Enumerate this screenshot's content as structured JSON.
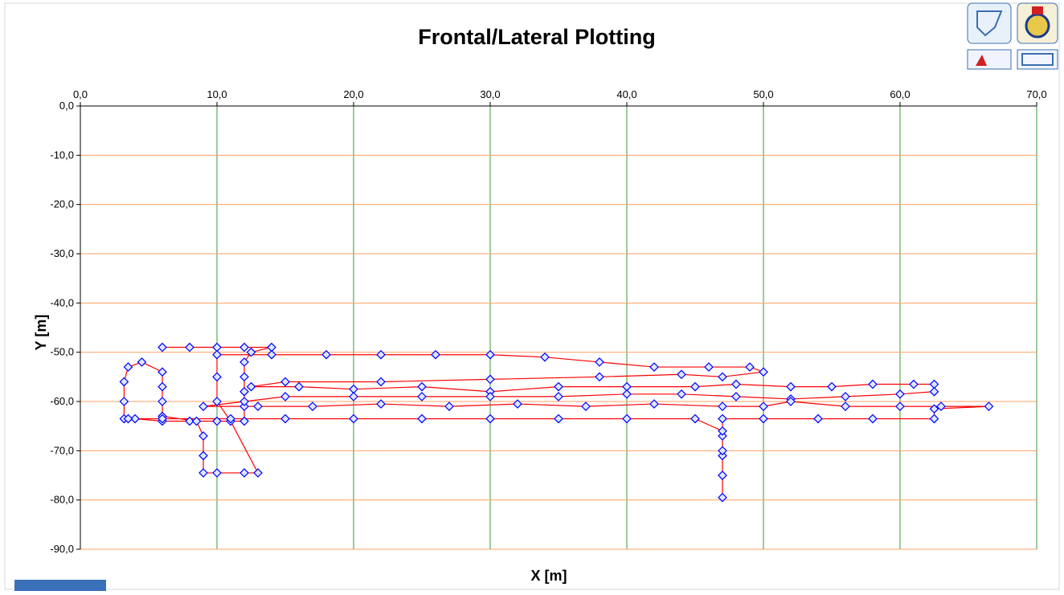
{
  "chart_data": {
    "type": "scatter",
    "title": "Frontal/Lateral Plotting",
    "x_label": "X [m]",
    "y_label": "Y [m]",
    "line_color": "#ff0000",
    "marker_color": "#0000ff",
    "grid": true,
    "x_grid_color": "#3a9a3a",
    "y_grid_color": "#ffa060",
    "xlim": [
      0,
      70
    ],
    "ylim": [
      -90,
      0
    ],
    "xticks": [
      {
        "value": 0,
        "label": "0,0"
      },
      {
        "value": 10,
        "label": "10,0"
      },
      {
        "value": 20,
        "label": "20,0"
      },
      {
        "value": 30,
        "label": "30,0"
      },
      {
        "value": 40,
        "label": "40,0"
      },
      {
        "value": 50,
        "label": "50,0"
      },
      {
        "value": 60,
        "label": "60,0"
      },
      {
        "value": 70,
        "label": "70,0"
      }
    ],
    "yticks": [
      {
        "value": 0,
        "label": "0,0"
      },
      {
        "value": -10,
        "label": "-10,0"
      },
      {
        "value": -20,
        "label": "-20,0"
      },
      {
        "value": -30,
        "label": "-30,0"
      },
      {
        "value": -40,
        "label": "-40,0"
      },
      {
        "value": -50,
        "label": "-50,0"
      },
      {
        "value": -60,
        "label": "-60,0"
      },
      {
        "value": -70,
        "label": "-70,0"
      },
      {
        "value": -80,
        "label": "-80,0"
      },
      {
        "value": -90,
        "label": "-90,0"
      }
    ],
    "x": [
      6,
      8,
      10,
      12,
      14,
      12.5,
      12,
      12,
      12,
      12,
      12,
      10,
      8,
      6,
      4,
      3.2,
      3.2,
      3.2,
      3.5,
      4.5,
      6,
      6,
      6,
      6,
      8.5,
      9,
      9,
      9,
      10,
      12,
      13,
      11,
      10,
      10,
      10,
      14,
      18,
      22,
      26,
      30,
      34,
      38,
      42,
      46,
      49,
      50,
      47,
      44,
      38,
      30,
      22,
      15,
      12.5,
      16,
      20,
      25,
      30,
      35,
      40,
      45,
      48,
      52,
      55,
      58,
      61,
      62.5,
      62.5,
      60,
      56,
      52,
      48,
      44,
      40,
      35,
      30,
      25,
      20,
      15,
      12,
      9,
      13,
      17,
      22,
      27,
      32,
      37,
      42,
      47,
      50,
      52,
      56,
      60,
      63,
      66.5,
      62.5,
      62.5,
      58,
      54,
      50,
      47,
      47,
      47,
      47,
      47,
      47,
      47,
      47,
      45,
      40,
      35,
      30,
      25,
      20,
      15,
      11,
      6,
      3.5
    ],
    "values": [
      -49,
      -49,
      -49,
      -49,
      -49,
      -50,
      -52,
      -55,
      -58,
      -61,
      -64,
      -64,
      -64,
      -64,
      -63.5,
      -63.5,
      -60,
      -56,
      -53,
      -52,
      -54,
      -57,
      -60,
      -63,
      -64,
      -67,
      -71,
      -74.5,
      -74.5,
      -74.5,
      -74.5,
      -64,
      -60,
      -55,
      -50.5,
      -50.5,
      -50.5,
      -50.5,
      -50.5,
      -50.5,
      -51,
      -52,
      -53,
      -53,
      -53,
      -54,
      -55,
      -54.5,
      -55,
      -55.5,
      -56,
      -56,
      -57,
      -57,
      -57.5,
      -57,
      -58,
      -57,
      -57,
      -57,
      -56.5,
      -57,
      -57,
      -56.5,
      -56.5,
      -56.5,
      -58,
      -58.5,
      -59,
      -59.5,
      -59,
      -58.5,
      -58.5,
      -59,
      -59,
      -59,
      -59,
      -59,
      -60,
      -61,
      -61,
      -61,
      -60.5,
      -61,
      -60.5,
      -61,
      -60.5,
      -61,
      -61,
      -60,
      -61,
      -61,
      -61,
      -61,
      -61.5,
      -63.5,
      -63.5,
      -63.5,
      -63.5,
      -63.5,
      -67,
      -71,
      -75,
      -79.5,
      -75,
      -70,
      -66,
      -63.5,
      -63.5,
      -63.5,
      -63.5,
      -63.5,
      -63.5,
      -63.5,
      -63.5,
      -63.5,
      -63.5
    ]
  }
}
